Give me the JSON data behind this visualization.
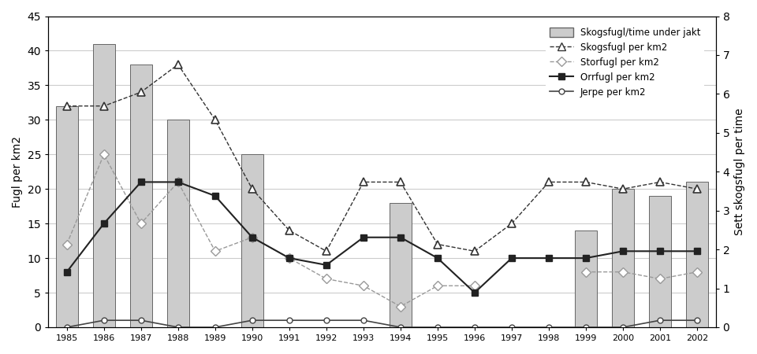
{
  "years": [
    1985,
    1986,
    1987,
    1988,
    1989,
    1990,
    1991,
    1992,
    1993,
    1994,
    1995,
    1996,
    1997,
    1998,
    1999,
    2000,
    2001,
    2002
  ],
  "bar_values": [
    32,
    41,
    38,
    30,
    null,
    25,
    null,
    null,
    null,
    18,
    null,
    null,
    null,
    null,
    14,
    20,
    19,
    21
  ],
  "skogsfugl_per_km2": [
    32,
    32,
    34,
    38,
    30,
    20,
    14,
    11,
    21,
    21,
    12,
    11,
    15,
    21,
    21,
    20,
    21,
    20
  ],
  "storfugl_per_km2": [
    12,
    25,
    15,
    21,
    11,
    13,
    10,
    7,
    6,
    3,
    6,
    6,
    null,
    null,
    8,
    8,
    7,
    8
  ],
  "orrfugl_per_km2": [
    8,
    15,
    21,
    21,
    19,
    13,
    10,
    9,
    13,
    13,
    10,
    5,
    10,
    10,
    10,
    11,
    11,
    11
  ],
  "jerpe_per_km2": [
    0,
    1,
    1,
    0,
    0,
    1,
    1,
    1,
    1,
    0,
    0,
    0,
    0,
    0,
    0,
    0,
    1,
    1
  ],
  "sett_skogsfugl": [
    null,
    null,
    null,
    null,
    null,
    null,
    null,
    null,
    null,
    null,
    null,
    null,
    null,
    null,
    null,
    null,
    null,
    null
  ],
  "left_ylim": [
    0,
    45
  ],
  "right_ylim": [
    0,
    8
  ],
  "left_yticks": [
    0,
    5,
    10,
    15,
    20,
    25,
    30,
    35,
    40,
    45
  ],
  "right_yticks": [
    0,
    1,
    2,
    3,
    4,
    5,
    6,
    7,
    8
  ],
  "left_ylabel": "Fugl per km2",
  "right_ylabel": "Sett skogsfugl per time",
  "xlabel": "",
  "title": "",
  "bar_color": "#cccccc",
  "bar_edge_color": "#666666",
  "skogsfugl_color": "#555555",
  "storfugl_color": "#aaaaaa",
  "orrfugl_color": "#222222",
  "jerpe_color": "#555555",
  "background_color": "#ffffff",
  "grid_color": "#cccccc"
}
